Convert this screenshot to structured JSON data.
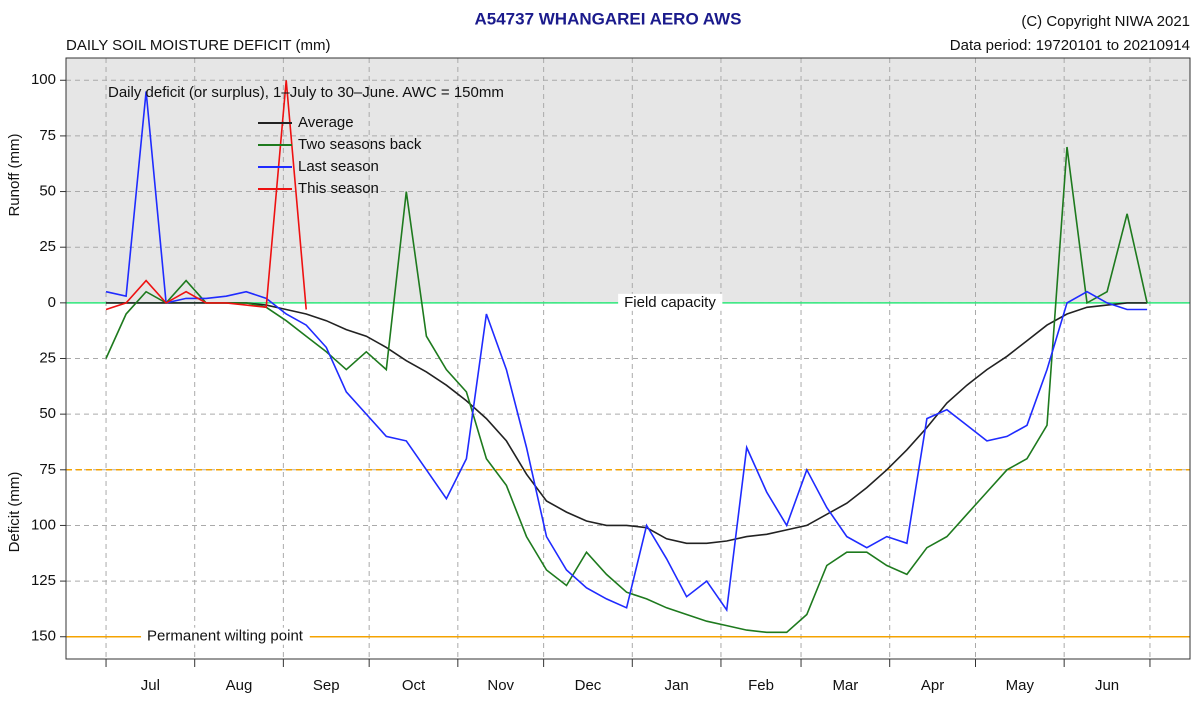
{
  "chart_data": {
    "type": "line",
    "title": "A54737  WHANGAREI AERO AWS",
    "subtitle": "DAILY SOIL MOISTURE DEFICIT (mm)",
    "copyright": "(C) Copyright NIWA  2021",
    "data_period": "Data period:  19720101  to  20210914",
    "annotation": "Daily deficit (or surplus), 1–July to 30–June.  AWC = 150mm",
    "ylabel_top": "Runoff (mm)",
    "ylabel_bottom": "Deficit (mm)",
    "categories": [
      "Jul",
      "Aug",
      "Sep",
      "Oct",
      "Nov",
      "Dec",
      "Jan",
      "Feb",
      "Mar",
      "Apr",
      "May",
      "Jun"
    ],
    "xticks": [
      0,
      31,
      62,
      92,
      123,
      153,
      184,
      215,
      243,
      274,
      304,
      335,
      365
    ],
    "xlim": [
      -14,
      379
    ],
    "ylim": [
      -160,
      110
    ],
    "yticks": [
      100,
      75,
      50,
      25,
      0,
      {
        "value": -25,
        "label": "25"
      },
      {
        "value": -50,
        "label": "50"
      },
      {
        "value": -75,
        "label": "75"
      },
      {
        "value": -100,
        "label": "100"
      },
      {
        "value": -125,
        "label": "125"
      },
      {
        "value": -150,
        "label": "150"
      }
    ],
    "grid": true,
    "legend": "top-left",
    "hlines": [
      {
        "value": 0,
        "label": "Field capacity",
        "color": "#2ee87a",
        "style": "solid"
      },
      {
        "value": -75,
        "color": "#f5a300",
        "style": "dashed"
      },
      {
        "value": -150,
        "label": "Permanent wilting point",
        "color": "#f5a300",
        "style": "solid"
      }
    ],
    "x": [
      0,
      7,
      14,
      21,
      28,
      35,
      42,
      49,
      56,
      63,
      70,
      77,
      84,
      91,
      98,
      105,
      112,
      119,
      126,
      133,
      140,
      147,
      154,
      161,
      168,
      175,
      182,
      189,
      196,
      203,
      210,
      217,
      224,
      231,
      238,
      245,
      252,
      259,
      266,
      273,
      280,
      287,
      294,
      301,
      308,
      315,
      322,
      329,
      336,
      343,
      350,
      357,
      364
    ],
    "series": [
      {
        "name": "Average",
        "color": "#222222",
        "values": [
          0,
          0,
          0,
          0,
          0,
          0,
          0,
          0,
          -1,
          -3,
          -5,
          -8,
          -12,
          -15,
          -20,
          -26,
          -31,
          -37,
          -44,
          -52,
          -62,
          -77,
          -89,
          -94,
          -98,
          -100,
          -100,
          -101,
          -106,
          -108,
          -108,
          -107,
          -105,
          -104,
          -102,
          -100,
          -95,
          -90,
          -83,
          -75,
          -66,
          -56,
          -45,
          -37,
          -30,
          -24,
          -17,
          -10,
          -5,
          -2,
          -1,
          0,
          0
        ]
      },
      {
        "name": "Two seasons back",
        "color": "#1e7a1e",
        "values": [
          -25,
          -5,
          5,
          0,
          10,
          0,
          0,
          0,
          -2,
          -8,
          -15,
          -22,
          -30,
          -22,
          -30,
          50,
          -15,
          -30,
          -40,
          -70,
          -82,
          -105,
          -120,
          -127,
          -112,
          -122,
          -130,
          -133,
          -137,
          -140,
          -143,
          -145,
          -147,
          -148,
          -148,
          -140,
          -118,
          -112,
          -112,
          -118,
          -122,
          -110,
          -105,
          -95,
          -85,
          -75,
          -70,
          -55,
          70,
          0,
          5,
          40,
          0
        ]
      },
      {
        "name": "Last season",
        "color": "#1f2bff",
        "values": [
          5,
          3,
          95,
          0,
          2,
          2,
          3,
          5,
          2,
          -5,
          -10,
          -20,
          -40,
          -50,
          -60,
          -62,
          -75,
          -88,
          -70,
          -5,
          -30,
          -65,
          -105,
          -120,
          -128,
          -133,
          -137,
          -100,
          -115,
          -132,
          -125,
          -138,
          -65,
          -85,
          -100,
          -75,
          -92,
          -105,
          -110,
          -105,
          -108,
          -52,
          -48,
          -55,
          -62,
          -60,
          -55,
          -30,
          0,
          5,
          0,
          -3,
          -3
        ]
      },
      {
        "name": "This season",
        "color": "#ee1111",
        "values": [
          -3,
          0,
          10,
          0,
          5,
          0,
          0,
          -1,
          -2,
          100,
          -3,
          null,
          null,
          null,
          null,
          null,
          null,
          null,
          null,
          null,
          null,
          null,
          null,
          null,
          null,
          null,
          null,
          null,
          null,
          null,
          null,
          null,
          null,
          null,
          null,
          null,
          null,
          null,
          null,
          null,
          null,
          null,
          null,
          null,
          null,
          null,
          null,
          null,
          null,
          null,
          null,
          null,
          null
        ]
      }
    ]
  }
}
